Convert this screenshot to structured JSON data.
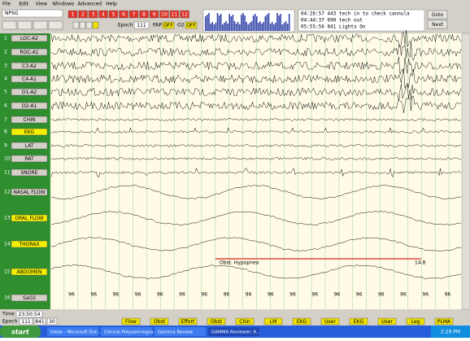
{
  "menu": [
    "File",
    "Edit",
    "View",
    "Windows",
    "Advanced",
    "Help"
  ],
  "toolbar": {
    "montage": "NPSG",
    "pages": [
      1,
      2,
      3,
      4,
      5,
      6,
      7,
      8,
      9,
      10,
      11,
      12
    ],
    "epoch_label": "Epoch",
    "epoch": 111,
    "pap_label": "PAP",
    "pap_value": "OFF",
    "o2_label": "O2",
    "o2_value": "OFF"
  },
  "event_log": [
    "04:26:57 443 tech in to check cannula",
    "04:44:37 690 tech out",
    "05:55:56 841 Lights On"
  ],
  "side_buttons": [
    "Goto",
    "Next"
  ],
  "channels": [
    {
      "number": 1,
      "label": "LOC-A2"
    },
    {
      "number": 2,
      "label": "ROC-A1"
    },
    {
      "number": 3,
      "label": "C3-A2"
    },
    {
      "number": 4,
      "label": "C4-A1"
    },
    {
      "number": 5,
      "label": "O1-A2"
    },
    {
      "number": 6,
      "label": "O2-A1"
    },
    {
      "number": 7,
      "label": "CHIN"
    },
    {
      "number": 8,
      "label": "EKG"
    },
    {
      "number": 9,
      "label": "LAT"
    },
    {
      "number": 10,
      "label": "RAT"
    },
    {
      "number": 11,
      "label": "SNORE"
    },
    {
      "number": 12,
      "label": "NASAL FLOW"
    },
    {
      "number": 13,
      "label": "ORAL FLOW"
    },
    {
      "number": 14,
      "label": "THORAX"
    },
    {
      "number": 15,
      "label": "ABDOMEN"
    },
    {
      "number": 16,
      "label": "SaO2"
    }
  ],
  "annotation": "Obst. Hypopnea",
  "annotation_value": "14.8",
  "spo2_readings": [
    96,
    96,
    96,
    96,
    96,
    96,
    96,
    96,
    96,
    96,
    96,
    96,
    96,
    96,
    96,
    96,
    96,
    96
  ],
  "status": {
    "time_label": "Time",
    "time": "23:50:54",
    "epoch_label": "Epoch",
    "epoch": 111,
    "epoch_total": 841,
    "epoch_seconds": 30
  },
  "event_buttons": [
    "Flow",
    "Obst",
    "Effort",
    "Obst",
    "Chin",
    "LM",
    "EKG",
    "User",
    "EKG",
    "User",
    "Leg",
    "PLMA"
  ],
  "taskbar": {
    "start": "start",
    "tasks": [
      "Inbox - Microsoft Out...",
      "Clinical Polysomnogra...",
      "Gamma Review",
      "GAMMA Reviewer: K..."
    ],
    "clock": "2:29 PM"
  }
}
